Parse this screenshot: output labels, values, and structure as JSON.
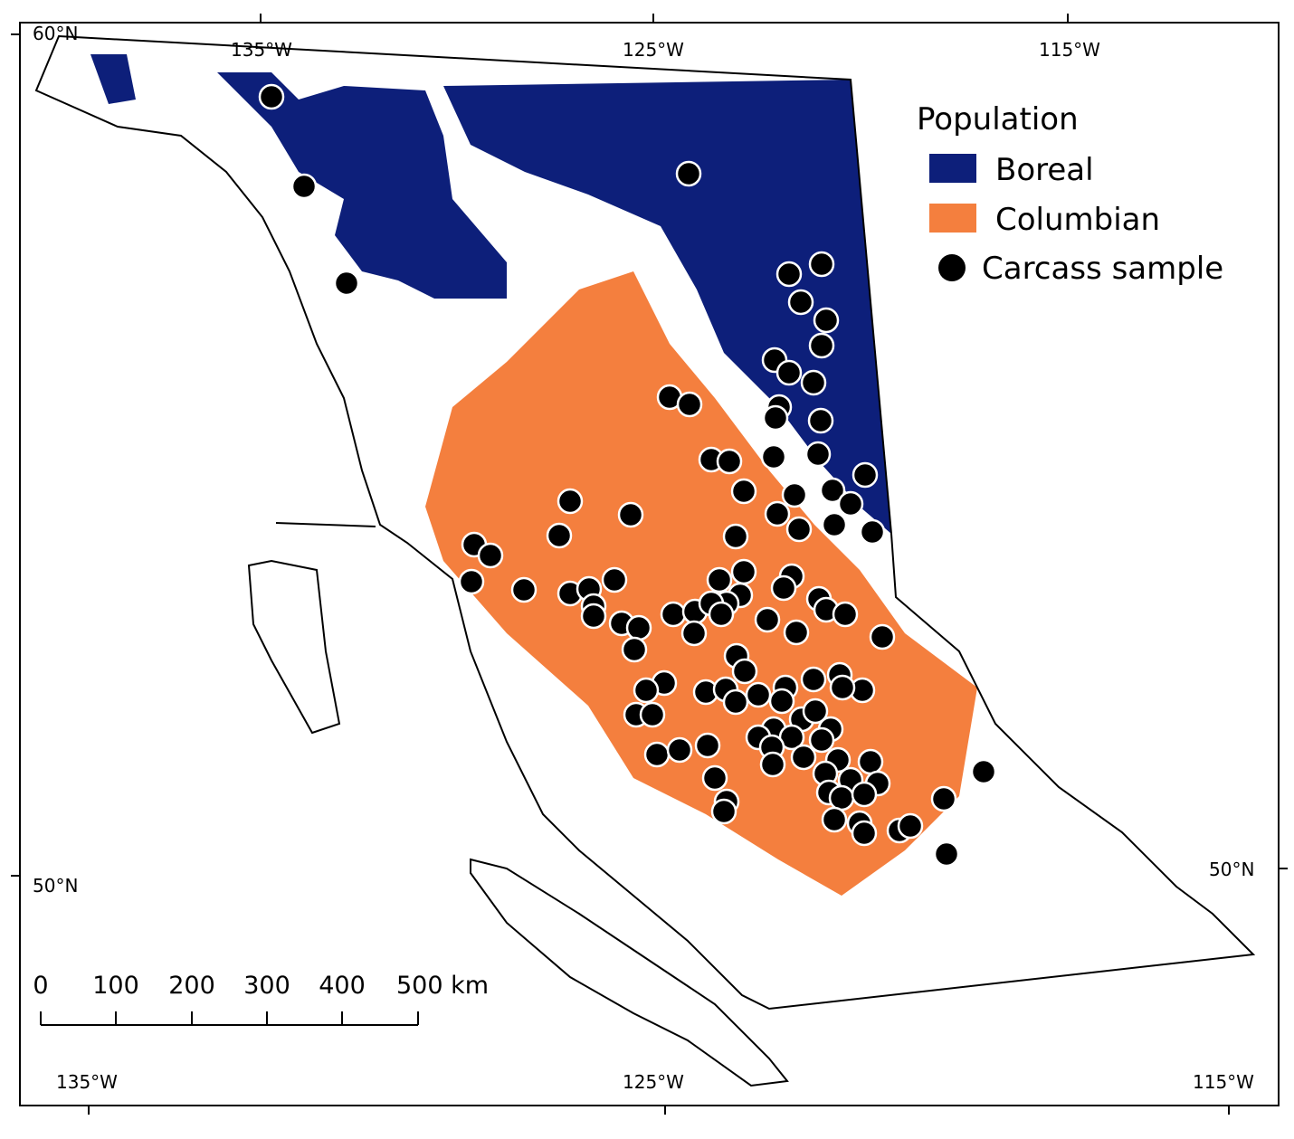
{
  "graticule": {
    "top": [
      "135°W",
      "125°W",
      "115°W"
    ],
    "left": [
      "60°N",
      "50°N"
    ],
    "right": [
      "50°N"
    ],
    "bottom": [
      "135°W",
      "125°W",
      "115°W"
    ]
  },
  "legend": {
    "title": "Population",
    "items": [
      "Boreal",
      "Columbian",
      "Carcass sample"
    ]
  },
  "scale_bar": {
    "labels": [
      "0",
      "100",
      "200",
      "300",
      "400",
      "500 km"
    ]
  }
}
